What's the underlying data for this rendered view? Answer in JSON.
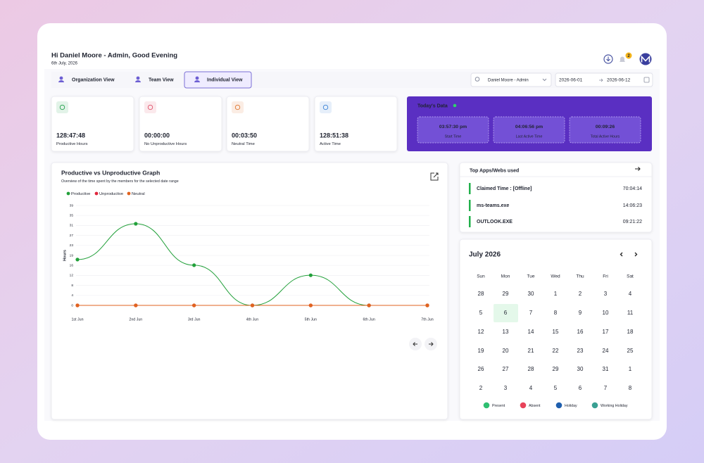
{
  "header": {
    "greeting": "Hi Daniel Moore - Admin, Good Evening",
    "date": "6th July, 2026",
    "notification_count": "2"
  },
  "tabs": [
    "Organization View",
    "Team View",
    "Individual View"
  ],
  "filters": {
    "user": "Daniel Moore - Admin",
    "start_date": "2026-06-01",
    "end_date": "2026-06-12"
  },
  "stat_cards": [
    {
      "value": "128:47:48",
      "label": "Productive Hours",
      "color": "#22a04b"
    },
    {
      "value": "00:00:00",
      "label": "No Unproductive Hours",
      "color": "#e0526a"
    },
    {
      "value": "00:03:50",
      "label": "Neutral Time",
      "color": "#e0762f"
    },
    {
      "value": "128:51:38",
      "label": "Active Time",
      "color": "#3b82d6"
    }
  ],
  "todays_data": {
    "title": "Today's Data",
    "items": [
      {
        "value": "03:57:30 pm",
        "label": "Start Time"
      },
      {
        "value": "04:06:56 pm",
        "label": "Last Active Time"
      },
      {
        "value": "00:09:26",
        "label": "Total Active Hours"
      }
    ]
  },
  "chart_data": {
    "type": "line",
    "title": "Productive vs Unproductive Graph",
    "subtitle": "Overview of the time spent by the members for the selected date range",
    "y_label": "Hours",
    "categories": [
      "1st Jun",
      "2nd Jun",
      "3rd Jun",
      "4th Jun",
      "5th Jun",
      "6th Jun",
      "7th Jun"
    ],
    "series": [
      {
        "name": "Productive",
        "color": "#22a03a",
        "values": [
          17.8,
          31.7,
          15.6,
          0,
          11.7,
          0,
          0
        ]
      },
      {
        "name": "Unproductive",
        "color": "#e0263c",
        "values": [
          0,
          0,
          0,
          0,
          0,
          0,
          0
        ]
      },
      {
        "name": "Neutral",
        "color": "#e0631f",
        "values": [
          0,
          0,
          0,
          0,
          0,
          0,
          0
        ]
      }
    ],
    "ylim": [
      0,
      38.8
    ],
    "yticks": [
      0,
      {
        "value": 3.88,
        "label": "4"
      },
      {
        "value": 7.76,
        "label": "8"
      },
      {
        "value": 11.64,
        "label": "12"
      },
      {
        "value": 15.52,
        "label": "16"
      },
      {
        "value": 19.4,
        "label": "19"
      },
      {
        "value": 23.28,
        "label": "23"
      },
      {
        "value": 27.16,
        "label": "27"
      },
      {
        "value": 31.04,
        "label": "31"
      },
      {
        "value": 34.92,
        "label": "35"
      },
      {
        "value": 38.8,
        "label": "39"
      }
    ],
    "grid": true
  },
  "top_apps": {
    "title": "Top Apps/Webs used",
    "rows": [
      {
        "name": "Claimed Time : [Offline]",
        "time": "70:04:14"
      },
      {
        "name": "ms-teams.exe",
        "time": "14:06:23"
      },
      {
        "name": "OUTLOOK.EXE",
        "time": "09:21:22"
      }
    ]
  },
  "calendar": {
    "title": "July 2026",
    "weekdays": [
      "Sun",
      "Mon",
      "Tue",
      "Wed",
      "Thu",
      "Fri",
      "Sat"
    ],
    "weeks": [
      [
        28,
        29,
        30,
        1,
        2,
        3,
        4
      ],
      [
        5,
        6,
        7,
        8,
        9,
        10,
        11
      ],
      [
        12,
        13,
        14,
        15,
        16,
        17,
        18
      ],
      [
        19,
        20,
        21,
        22,
        23,
        24,
        25
      ],
      [
        26,
        27,
        28,
        29,
        30,
        31,
        1
      ],
      [
        2,
        3,
        4,
        5,
        6,
        7,
        8
      ]
    ],
    "legend": [
      {
        "label": "Present",
        "color": "#2fbf71"
      },
      {
        "label": "Absent",
        "color": "#e8435a"
      },
      {
        "label": "Holiday",
        "color": "#1f5fae"
      },
      {
        "label": "Working Holiday",
        "color": "#3aa093"
      }
    ]
  }
}
